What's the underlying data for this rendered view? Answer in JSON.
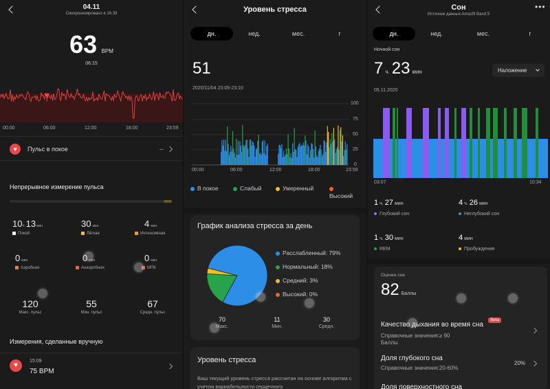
{
  "colors": {
    "heart": "#e84848",
    "blue": "#2d8ee8",
    "green": "#27a34a",
    "yellow": "#f0c020",
    "orange": "#e8682a",
    "purple": "#9b6cf0",
    "deep": "#8a5cf0",
    "light": "#2d8ee8",
    "rem": "#1f8f3a"
  },
  "pulse": {
    "title": "04.11",
    "sync": "Синхронизировано в 16:39",
    "bpm": "63",
    "bpm_unit": "BPM",
    "time": "06:15",
    "x_ticks": [
      "00:00",
      "06:00",
      "12:00",
      "18:00",
      "23:59"
    ],
    "rest_label": "Пульс в покое",
    "rest_value": "--",
    "continuous_title": "Непрерывное измерение пульса",
    "zones": [
      {
        "value": "10",
        "unit1": "ч",
        "value2": "13",
        "unit2": "мин",
        "label": "Покой",
        "color": "#ffffff"
      },
      {
        "value": "30",
        "unit1": "",
        "value2": "",
        "unit2": "мин",
        "label": "Лёгкая",
        "color": "#f0c020"
      },
      {
        "value": "4",
        "unit1": "",
        "value2": "",
        "unit2": "мин",
        "label": "Интенсивная",
        "color": "#f0a020"
      },
      {
        "value": "0",
        "unit1": "",
        "value2": "",
        "unit2": "мин",
        "label": "Аэробная",
        "color": "#e88040"
      },
      {
        "value": "0",
        "unit1": "",
        "value2": "",
        "unit2": "мин",
        "label": "Анаэробная",
        "color": "#e86a3a"
      },
      {
        "value": "0",
        "unit1": "",
        "value2": "",
        "unit2": "мин",
        "label": "МПК",
        "color": "#e85050"
      }
    ],
    "stats": [
      {
        "value": "120",
        "label": "Макс. пульс"
      },
      {
        "value": "55",
        "label": "Мин. пульс"
      },
      {
        "value": "67",
        "label": "Средн. пульс"
      }
    ],
    "manual_title": "Измерения, сделанные вручную",
    "manual_time": "15:09",
    "manual_value": "75 BPM"
  },
  "stress": {
    "title": "Уровень стресса",
    "tabs": [
      "дн.",
      "нед.",
      "мес.",
      "г"
    ],
    "value": "51",
    "range": "2020/11/04 23:05-23:10",
    "y_ticks": [
      "100",
      "75",
      "50",
      "25",
      "0"
    ],
    "x_ticks": [
      "00:00",
      "06:00",
      "12:00",
      "18:00",
      "23:59"
    ],
    "legend": [
      "В покое",
      "Слабый",
      "Умеренный",
      "Высокий"
    ],
    "pie_title": "График анализа стресса за день",
    "pie_items": [
      {
        "label": "Расслабленный: 79%",
        "value": 79,
        "color": "#2d8ee8"
      },
      {
        "label": "Нормальный: 18%",
        "value": 18,
        "color": "#27a34a"
      },
      {
        "label": "Средний: 3%",
        "value": 3,
        "color": "#f0c020"
      },
      {
        "label": "Высокий: 0%",
        "value": 0,
        "color": "#e8682a"
      }
    ],
    "pie_stats": [
      {
        "value": "70",
        "label": "Макс."
      },
      {
        "value": "11",
        "label": "Мин."
      },
      {
        "value": "30",
        "label": "Средн."
      }
    ],
    "bottom_title": "Уровень стресса",
    "bottom_text": "Ваш текущий уровень стресса рассчитан на основе алгоритма с учетом вариабельности сердечного"
  },
  "sleep": {
    "title": "Сон",
    "source": "Источник данных:Amazfit Band 5",
    "tabs": [
      "дн.",
      "нед.",
      "мес.",
      "г"
    ],
    "night_label": "Ночной сон",
    "hours": "7",
    "h_unit": "ч.",
    "minutes": "23",
    "m_unit": "мин",
    "overlay": "Наложение",
    "date": "05.11.2020",
    "start": "03:07",
    "end": "10:34",
    "phases": [
      {
        "h": "1",
        "m": "27",
        "label": "Глубокий сон",
        "color": "#9b6cf0"
      },
      {
        "h": "4",
        "m": "26",
        "label": "Неглубокий сон",
        "color": "#2d8ee8"
      },
      {
        "h": "1",
        "m": "30",
        "label": "REM",
        "color": "#27a34a"
      },
      {
        "h": "",
        "m": "4",
        "label": "Пробуждение",
        "color": "#f0c020"
      }
    ],
    "h_word": "ч.",
    "m_word": "мин",
    "score_label": "Оценка сна",
    "score": "82",
    "score_unit": "Баллы",
    "breath_title": "Качество дыхания во время сна",
    "beta": "Beta",
    "breath_ref": "Справочные значения:≥ 90",
    "breath_unit": "Баллы",
    "deep_title": "Доля глубокого сна",
    "deep_ref": "Справочные значения:20-60%",
    "deep_value": "20%",
    "next_title": "Доля поверхностного сна"
  }
}
